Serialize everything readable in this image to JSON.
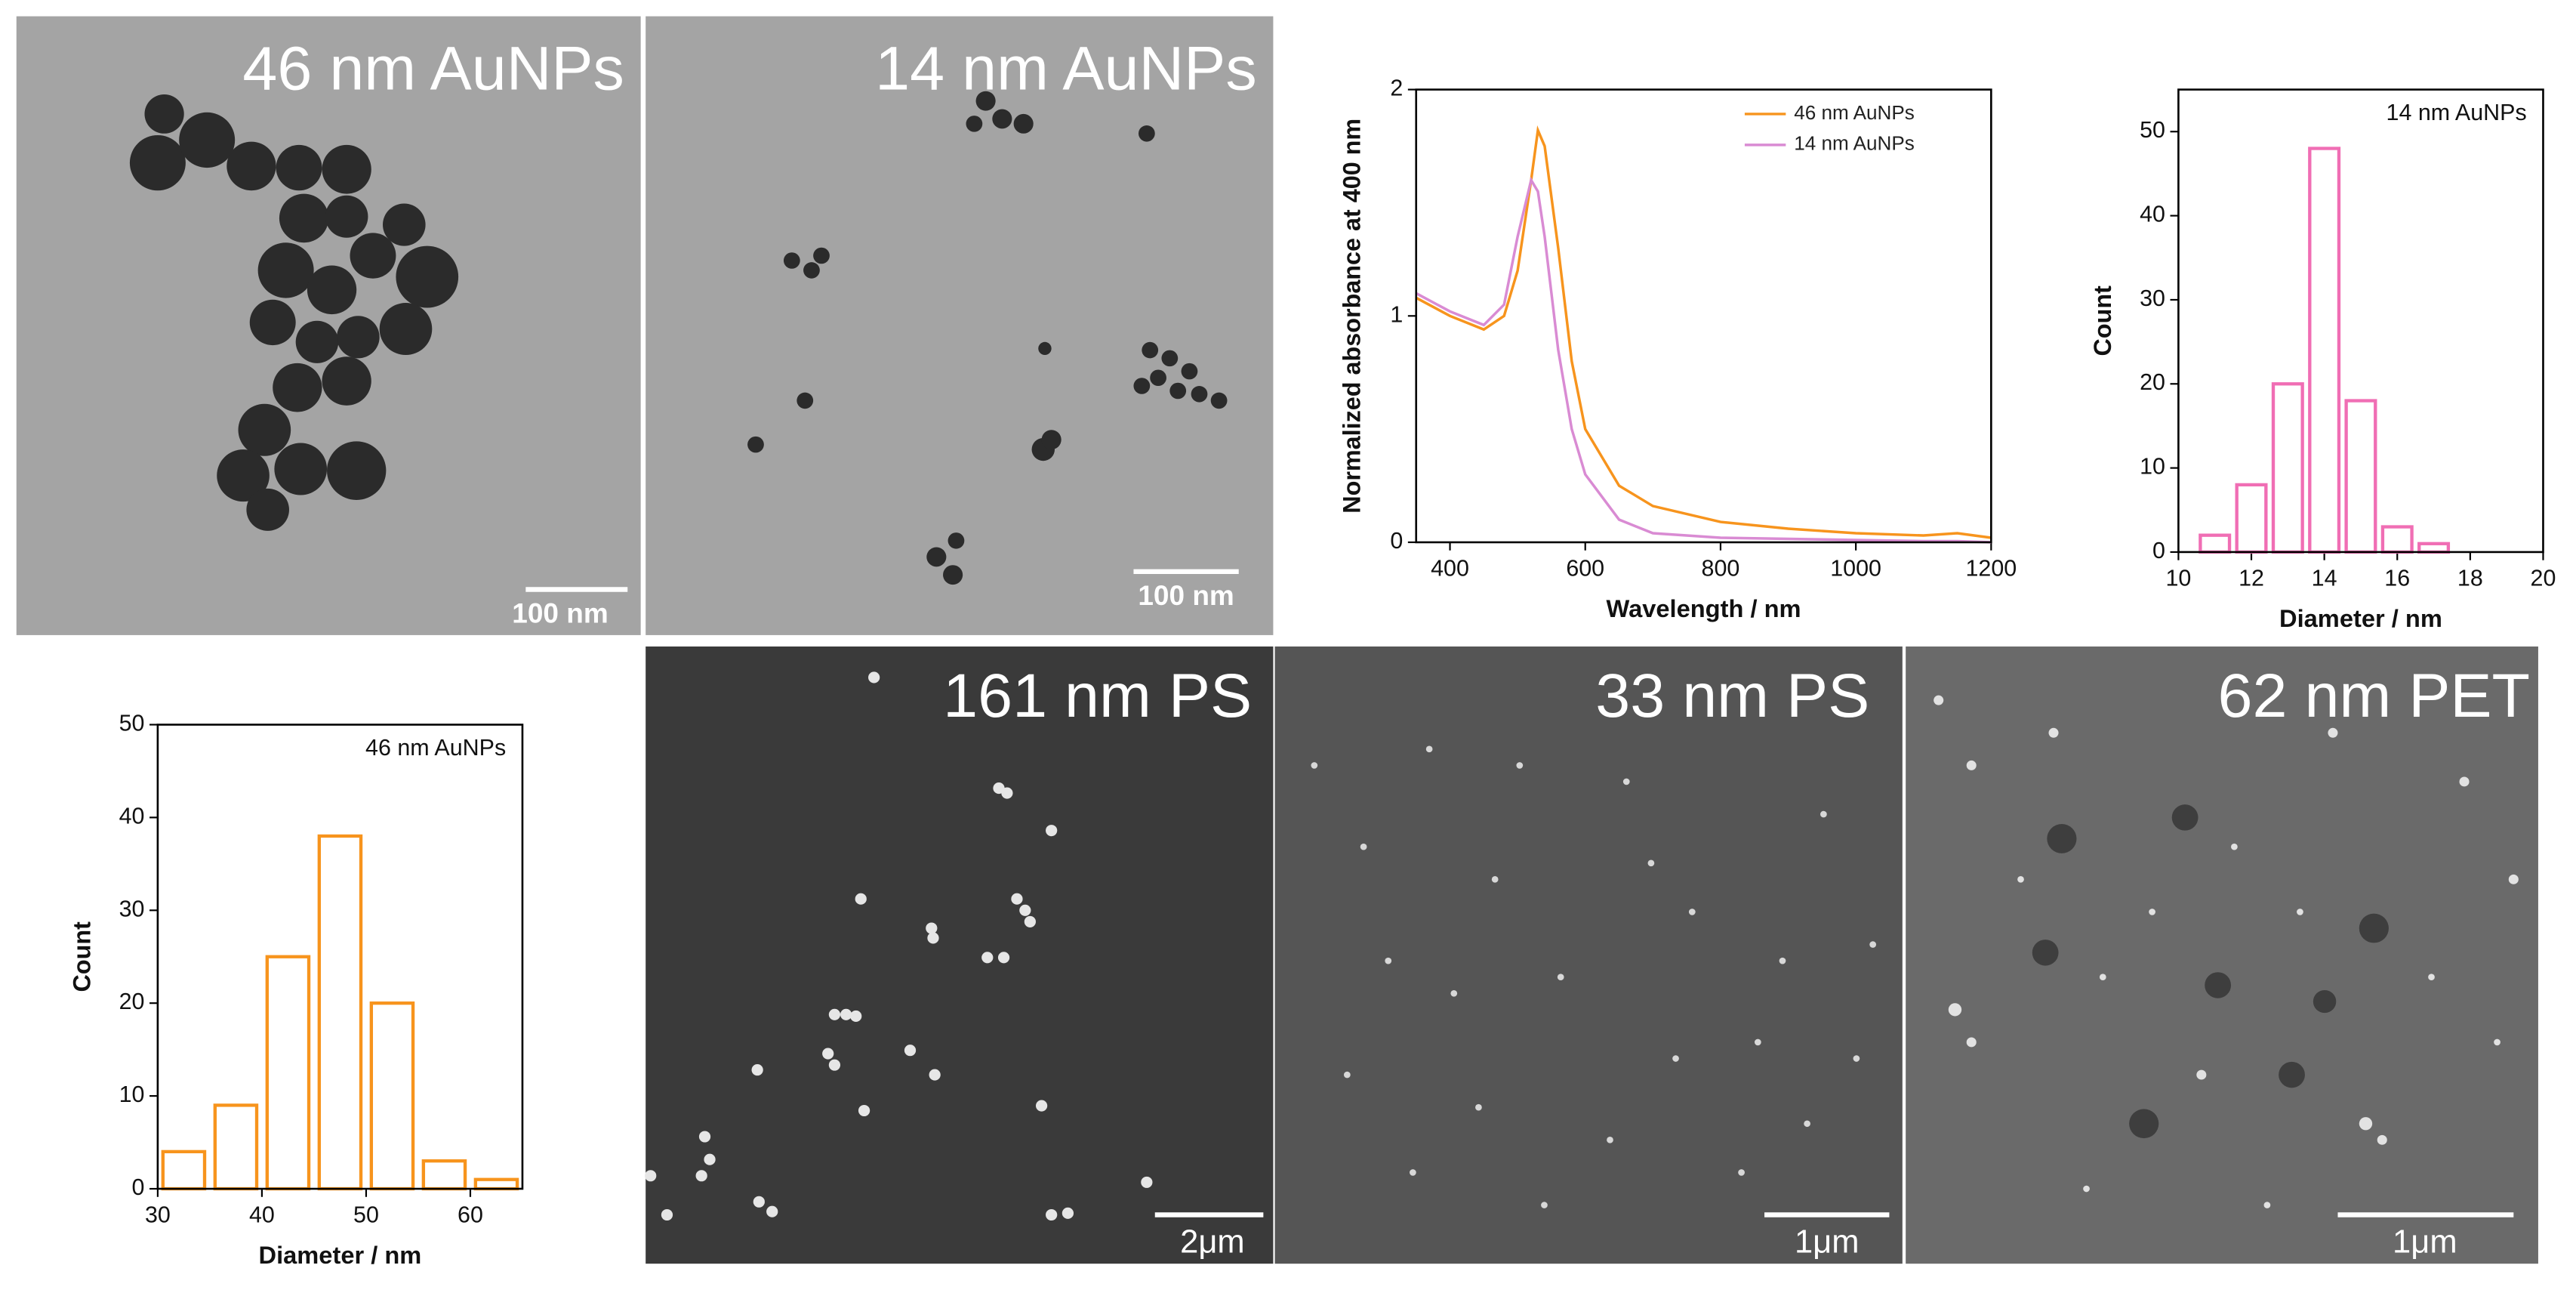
{
  "images": [
    {
      "label": "46 nm AuNPs",
      "scale_bar": "100 nm"
    },
    {
      "label": "14 nm AuNPs",
      "scale_bar": "100 nm"
    },
    {
      "label": "161 nm PS",
      "scale_bar": "2μm"
    },
    {
      "label": "33 nm PS",
      "scale_bar": "1μm"
    },
    {
      "label": "62 nm PET",
      "scale_bar": "1μm"
    }
  ],
  "chart_data": [
    {
      "type": "line",
      "xlabel": "Wavelength / nm",
      "ylabel": "Normalized absorbance at 400 nm",
      "x": [
        350,
        400,
        450,
        480,
        500,
        520,
        530,
        540,
        560,
        580,
        600,
        650,
        700,
        800,
        900,
        1000,
        1100,
        1150,
        1200
      ],
      "series": [
        {
          "name": "46 nm AuNPs",
          "color": "#f7941d",
          "values": [
            1.08,
            1.0,
            0.94,
            1.0,
            1.2,
            1.6,
            1.82,
            1.75,
            1.3,
            0.8,
            0.5,
            0.25,
            0.16,
            0.09,
            0.06,
            0.04,
            0.03,
            0.04,
            0.02
          ]
        },
        {
          "name": "14 nm AuNPs",
          "color": "#d98bd3",
          "values": [
            1.1,
            1.02,
            0.96,
            1.05,
            1.35,
            1.6,
            1.55,
            1.35,
            0.85,
            0.5,
            0.3,
            0.1,
            0.04,
            0.02,
            0.015,
            0.01,
            0.005,
            0.005,
            0.0
          ]
        }
      ],
      "xlim": [
        350,
        1200
      ],
      "xticks": [
        400,
        600,
        800,
        1000,
        1200
      ],
      "ylim": [
        0,
        2
      ],
      "yticks": [
        0,
        1,
        2
      ],
      "legend": "upper right"
    },
    {
      "type": "histogram",
      "annotation": "14 nm AuNPs",
      "xlabel": "Diameter / nm",
      "ylabel": "Count",
      "color": "#f06eb4",
      "bins": [
        10.5,
        11.5,
        12.5,
        13.5,
        14.5,
        15.5,
        16.5,
        17.5
      ],
      "values": [
        2,
        8,
        20,
        48,
        18,
        3,
        1
      ],
      "xlim": [
        10,
        20
      ],
      "xticks": [
        10,
        12,
        14,
        16,
        18,
        20
      ],
      "ylim": [
        0,
        55
      ],
      "yticks": [
        0,
        10,
        20,
        30,
        40,
        50
      ]
    },
    {
      "type": "histogram",
      "annotation": "46 nm AuNPs",
      "xlabel": "Diameter / nm",
      "ylabel": "Count",
      "color": "#f7941d",
      "bins": [
        30,
        35,
        40,
        45,
        50,
        55,
        60,
        65
      ],
      "values": [
        4,
        9,
        25,
        38,
        20,
        3,
        1
      ],
      "xlim": [
        30,
        65
      ],
      "xticks": [
        30,
        40,
        50,
        60
      ],
      "ylim": [
        0,
        50
      ],
      "yticks": [
        0,
        10,
        20,
        30,
        40,
        50
      ]
    }
  ]
}
